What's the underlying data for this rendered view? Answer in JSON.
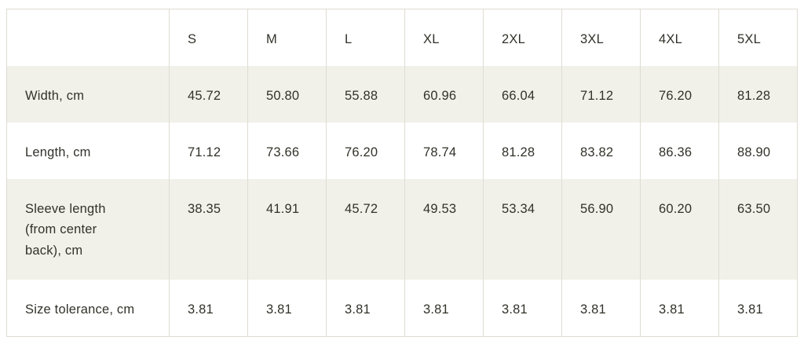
{
  "colors": {
    "page_bg": "#ffffff",
    "alt_row_bg": "#f1f1ea",
    "border": "#dedcd2",
    "text": "#32322a"
  },
  "chart_data": {
    "type": "table",
    "corner_label": "",
    "columns": [
      "S",
      "M",
      "L",
      "XL",
      "2XL",
      "3XL",
      "4XL",
      "5XL"
    ],
    "rows": [
      {
        "label": "Width, cm",
        "values": [
          "45.72",
          "50.80",
          "55.88",
          "60.96",
          "66.04",
          "71.12",
          "76.20",
          "81.28"
        ]
      },
      {
        "label": "Length, cm",
        "values": [
          "71.12",
          "73.66",
          "76.20",
          "78.74",
          "81.28",
          "83.82",
          "86.36",
          "88.90"
        ]
      },
      {
        "label": "Sleeve length\n(from center\nback), cm",
        "values": [
          "38.35",
          "41.91",
          "45.72",
          "49.53",
          "53.34",
          "56.90",
          "60.20",
          "63.50"
        ]
      },
      {
        "label": "Size tolerance, cm",
        "values": [
          "3.81",
          "3.81",
          "3.81",
          "3.81",
          "3.81",
          "3.81",
          "3.81",
          "3.81"
        ]
      }
    ]
  }
}
